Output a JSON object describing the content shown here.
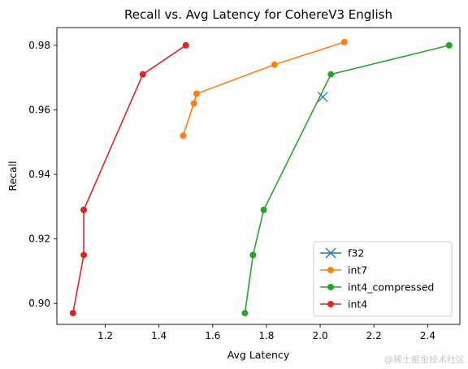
{
  "chart_data": {
    "type": "line",
    "title": "Recall vs. Avg Latency for CohereV3 English",
    "xlabel": "Avg Latency",
    "ylabel": "Recall",
    "xlim": [
      1.02,
      2.52
    ],
    "ylim": [
      0.8935,
      0.9855
    ],
    "xticks": [
      1.2,
      1.4,
      1.6,
      1.8,
      2.0,
      2.2,
      2.4
    ],
    "xtick_labels": [
      "1.2",
      "1.4",
      "1.6",
      "1.8",
      "2.0",
      "2.2",
      "2.4"
    ],
    "yticks": [
      0.9,
      0.92,
      0.94,
      0.96,
      0.98
    ],
    "ytick_labels": [
      "0.90",
      "0.92",
      "0.94",
      "0.96",
      "0.98"
    ],
    "grid": false,
    "legend_position": "lower-right",
    "series": [
      {
        "name": "f32",
        "color": "#1f77b4",
        "marker": "x",
        "points": [
          [
            2.01,
            0.964
          ]
        ]
      },
      {
        "name": "int7",
        "color": "#ff7f0e",
        "marker": "o",
        "points": [
          [
            1.49,
            0.952
          ],
          [
            1.53,
            0.962
          ],
          [
            1.54,
            0.965
          ],
          [
            1.83,
            0.974
          ],
          [
            2.09,
            0.981
          ]
        ]
      },
      {
        "name": "int4_compressed",
        "color": "#2ca02c",
        "marker": "o",
        "points": [
          [
            1.72,
            0.897
          ],
          [
            1.75,
            0.915
          ],
          [
            1.79,
            0.929
          ],
          [
            2.04,
            0.971
          ],
          [
            2.48,
            0.98
          ]
        ]
      },
      {
        "name": "int4",
        "color": "#d62728",
        "marker": "o",
        "points": [
          [
            1.08,
            0.897
          ],
          [
            1.12,
            0.915
          ],
          [
            1.12,
            0.929
          ],
          [
            1.34,
            0.971
          ],
          [
            1.5,
            0.98
          ]
        ]
      }
    ]
  },
  "watermark": "@稀土掘金技术社区"
}
